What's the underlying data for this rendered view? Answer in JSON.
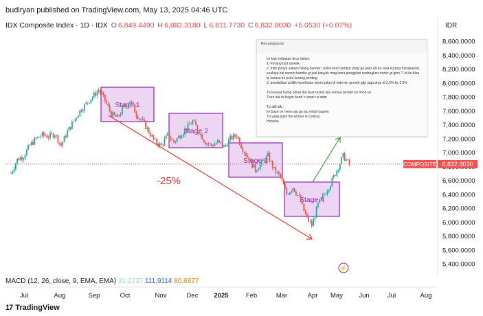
{
  "publisher": "budiryan published on TradingView.com, May 13, 2025 04:46 UTC",
  "header": {
    "symbol": "IDX Composite Index · 1D · IDX",
    "open_label": "O",
    "open": "6,849.4490",
    "high_label": "H",
    "high": "6,882.3180",
    "low_label": "L",
    "low": "6,811.7730",
    "close_label": "C",
    "close": "6,832.8030",
    "change": "+5.0530 (+0.07%)"
  },
  "currency": "IDR",
  "price_tag": {
    "name": "COMPOSITE",
    "value": "6,832.8030"
  },
  "annotations": {
    "pct": "-25%",
    "stages": [
      "Stage 1",
      "Stage 2",
      "Stage 3",
      "Stage 4"
    ]
  },
  "macd": {
    "label": "MACD (12, 26, close, 9, EMA, EMA)",
    "v1": "31.2237",
    "v2": "111.9114",
    "v3": "80.6877"
  },
  "footer": "TradingView",
  "memo": {
    "title": "Recompound",
    "lines": [
      "Ini kalo kebakan drop dalam",
      "1. Perang tarif amerik",
      "2. Indo punya saham hilang bandar / polisi keut campur yang ga jelas (di ku rasa kurang transparan),",
      "   soalnya hal seperti bandar gt jual banyak mag kena panggilan sedangkan trader gt ginn ? Jd ke blas",
      "   tp kurasa ini point kurang penting",
      "3. pendidikan politik kesehatan akses jalan di indo tim growth gdp juga drop di 2.9% ke 2.5%",
      "",
      "Tp kurasa trump pintar dia buat resesi lalu semua pindah ke bond us",
      "Then dia ini bayar bond = lower us debt",
      "",
      "Tp still idk",
      "Ini base on news aja ga tau what happen",
      "Tp yang pasti the winner is coming",
      "Hahaha"
    ]
  },
  "colors": {
    "up": "#26a69a",
    "down": "#ef5350",
    "stage_fill": "#e6c8f0",
    "stage_stroke": "#8e24aa",
    "arrow_down": "#e53935",
    "arrow_up": "#43a047"
  },
  "chart_data": {
    "type": "candlestick",
    "x_ticks": [
      "Jul",
      "Aug",
      "Sep",
      "Oct",
      "Nov",
      "Dec",
      "2025",
      "Feb",
      "Mar",
      "Apr",
      "May",
      "Jun",
      "Jul",
      "Aug"
    ],
    "y_ticks": [
      "8,600.0000",
      "8,400.0000",
      "8,200.0000",
      "8,000.0000",
      "7,800.0000",
      "7,600.0000",
      "7,400.0000",
      "7,200.0000",
      "7,000.0000",
      "6,800.0000",
      "6,600.0000",
      "6,400.0000",
      "6,200.0000",
      "6,000.0000",
      "5,800.0000",
      "5,600.0000",
      "5,400.0000"
    ],
    "ylim": [
      5300,
      8700
    ],
    "series": [
      {
        "x": 0,
        "y": 6700
      },
      {
        "x": 4,
        "y": 6900
      },
      {
        "x": 8,
        "y": 6950
      },
      {
        "x": 12,
        "y": 7100
      },
      {
        "x": 16,
        "y": 7200
      },
      {
        "x": 20,
        "y": 7250
      },
      {
        "x": 24,
        "y": 7230
      },
      {
        "x": 28,
        "y": 7270
      },
      {
        "x": 32,
        "y": 7100
      },
      {
        "x": 36,
        "y": 7300
      },
      {
        "x": 40,
        "y": 7450
      },
      {
        "x": 44,
        "y": 7600
      },
      {
        "x": 48,
        "y": 7700
      },
      {
        "x": 52,
        "y": 7800
      },
      {
        "x": 56,
        "y": 7900
      },
      {
        "x": 60,
        "y": 7750
      },
      {
        "x": 64,
        "y": 7550
      },
      {
        "x": 68,
        "y": 7500
      },
      {
        "x": 72,
        "y": 7650
      },
      {
        "x": 76,
        "y": 7750
      },
      {
        "x": 80,
        "y": 7550
      },
      {
        "x": 84,
        "y": 7450
      },
      {
        "x": 88,
        "y": 7300
      },
      {
        "x": 92,
        "y": 7150
      },
      {
        "x": 96,
        "y": 7100
      },
      {
        "x": 100,
        "y": 7250
      },
      {
        "x": 104,
        "y": 7150
      },
      {
        "x": 108,
        "y": 7250
      },
      {
        "x": 112,
        "y": 7350
      },
      {
        "x": 116,
        "y": 7450
      },
      {
        "x": 120,
        "y": 7300
      },
      {
        "x": 124,
        "y": 7150
      },
      {
        "x": 128,
        "y": 7100
      },
      {
        "x": 132,
        "y": 7150
      },
      {
        "x": 136,
        "y": 7080
      },
      {
        "x": 140,
        "y": 7200
      },
      {
        "x": 144,
        "y": 7250
      },
      {
        "x": 148,
        "y": 7050
      },
      {
        "x": 152,
        "y": 6900
      },
      {
        "x": 156,
        "y": 6750
      },
      {
        "x": 160,
        "y": 6850
      },
      {
        "x": 164,
        "y": 6950
      },
      {
        "x": 168,
        "y": 6750
      },
      {
        "x": 172,
        "y": 6650
      },
      {
        "x": 176,
        "y": 6400
      },
      {
        "x": 180,
        "y": 6500
      },
      {
        "x": 184,
        "y": 6350
      },
      {
        "x": 188,
        "y": 6100
      },
      {
        "x": 192,
        "y": 5950
      },
      {
        "x": 196,
        "y": 6250
      },
      {
        "x": 200,
        "y": 6400
      },
      {
        "x": 204,
        "y": 6550
      },
      {
        "x": 208,
        "y": 6750
      },
      {
        "x": 212,
        "y": 6950
      },
      {
        "x": 216,
        "y": 6830
      }
    ]
  }
}
